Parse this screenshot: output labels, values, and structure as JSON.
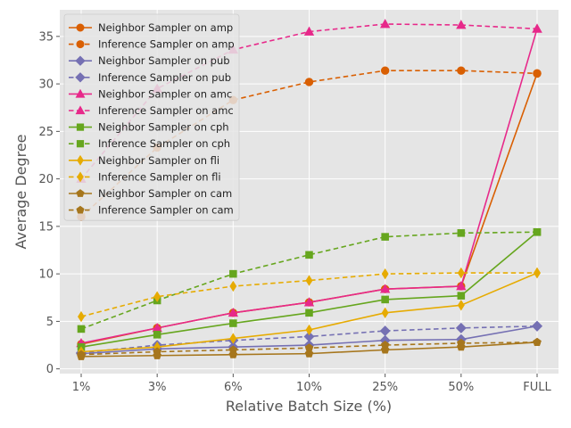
{
  "chart_data": {
    "type": "line",
    "title": "",
    "xlabel": "Relative Batch Size (%)",
    "ylabel": "Average Degree",
    "categories": [
      "1%",
      "3%",
      "6%",
      "10%",
      "25%",
      "50%",
      "FULL"
    ],
    "ylim": [
      -0.5,
      37.8
    ],
    "yticks": [
      0,
      5,
      10,
      15,
      20,
      25,
      30,
      35
    ],
    "grid": true,
    "legend_position": "top-left",
    "series": [
      {
        "name": "Neighbor Sampler on amp",
        "color": "#d95f02",
        "marker": "circle",
        "dash": "solid",
        "values": [
          2.6,
          4.3,
          5.9,
          7.0,
          8.4,
          8.7,
          31.1
        ]
      },
      {
        "name": "Inference Sampler on amp",
        "color": "#d95f02",
        "marker": "circle",
        "dash": "dashed",
        "values": [
          16.0,
          23.3,
          28.3,
          30.2,
          31.4,
          31.4,
          31.1
        ]
      },
      {
        "name": "Neighbor Sampler on pub",
        "color": "#7570b3",
        "marker": "diamond",
        "dash": "solid",
        "values": [
          1.6,
          2.1,
          2.3,
          2.5,
          3.0,
          3.1,
          4.5
        ]
      },
      {
        "name": "Inference Sampler on pub",
        "color": "#7570b3",
        "marker": "diamond",
        "dash": "dashed",
        "values": [
          1.7,
          2.5,
          3.0,
          3.4,
          4.0,
          4.3,
          4.5
        ]
      },
      {
        "name": "Neighbor Sampler on amc",
        "color": "#e7298a",
        "marker": "triangle",
        "dash": "solid",
        "values": [
          2.7,
          4.3,
          5.9,
          7.0,
          8.4,
          8.7,
          35.8
        ]
      },
      {
        "name": "Inference Sampler on amc",
        "color": "#e7298a",
        "marker": "triangle",
        "dash": "dashed",
        "values": [
          20.0,
          29.5,
          33.6,
          35.5,
          36.3,
          36.2,
          35.8
        ]
      },
      {
        "name": "Neighbor Sampler on cph",
        "color": "#66a61e",
        "marker": "square",
        "dash": "solid",
        "values": [
          2.3,
          3.6,
          4.8,
          5.9,
          7.3,
          7.7,
          14.4
        ]
      },
      {
        "name": "Inference Sampler on cph",
        "color": "#66a61e",
        "marker": "square",
        "dash": "dashed",
        "values": [
          4.2,
          7.2,
          10.0,
          12.0,
          13.9,
          14.3,
          14.4
        ]
      },
      {
        "name": "Neighbor Sampler on fli",
        "color": "#e6ab02",
        "marker": "thin-diamond",
        "dash": "solid",
        "values": [
          1.8,
          2.3,
          3.2,
          4.1,
          5.9,
          6.7,
          10.1
        ]
      },
      {
        "name": "Inference Sampler on fli",
        "color": "#e6ab02",
        "marker": "thin-diamond",
        "dash": "dashed",
        "values": [
          5.5,
          7.6,
          8.7,
          9.3,
          10.0,
          10.1,
          10.1
        ]
      },
      {
        "name": "Neighbor Sampler on cam",
        "color": "#a6761d",
        "marker": "pentagon",
        "dash": "solid",
        "values": [
          1.3,
          1.4,
          1.5,
          1.6,
          2.0,
          2.3,
          2.8
        ]
      },
      {
        "name": "Inference Sampler on cam",
        "color": "#a6761d",
        "marker": "pentagon",
        "dash": "dashed",
        "values": [
          1.5,
          1.8,
          2.0,
          2.2,
          2.5,
          2.7,
          2.8
        ]
      }
    ]
  }
}
